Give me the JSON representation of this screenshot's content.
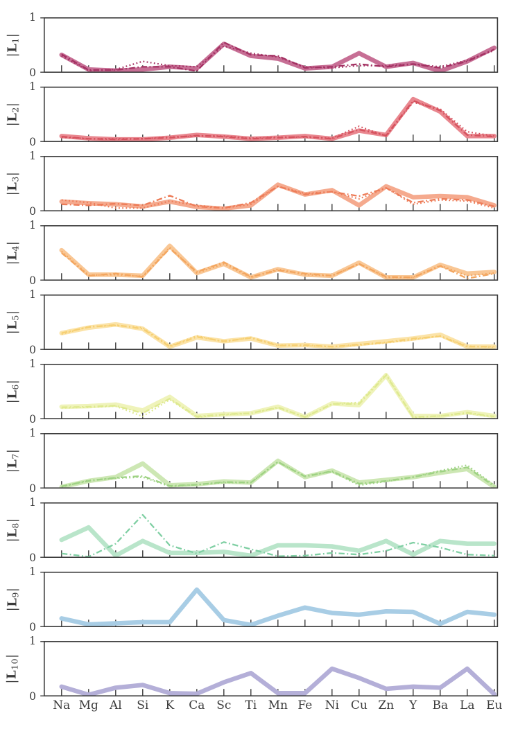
{
  "figure": {
    "background": "#ffffff",
    "frame_color": "#3b3b3b",
    "tick_color": "#3b3b3b",
    "y_axis": {
      "max_label": "1",
      "min_label": "0"
    },
    "y_label_open": "|",
    "y_label_letter": "L",
    "y_label_close": "|",
    "x_tick_labels": [
      "Na",
      "Mg",
      "Al",
      "Si",
      "K",
      "Ca",
      "Sc",
      "Ti",
      "Mn",
      "Fe",
      "Ni",
      "Cu",
      "Zn",
      "Y",
      "Ba",
      "La",
      "Eu"
    ],
    "rows": [
      {
        "id": "L1",
        "sub": "1",
        "color": "#c76f95",
        "accent": "#a43263"
      },
      {
        "id": "L2",
        "sub": "2",
        "color": "#e9878f",
        "accent": "#d5525e"
      },
      {
        "id": "L3",
        "sub": "3",
        "color": "#f5aa8e",
        "accent": "#ed7c58"
      },
      {
        "id": "L4",
        "sub": "4",
        "color": "#f9c795",
        "accent": "#f3a55e"
      },
      {
        "id": "L5",
        "sub": "5",
        "color": "#fbe3a8",
        "accent": "#f6cf72"
      },
      {
        "id": "L6",
        "sub": "6",
        "color": "#eff3ba",
        "accent": "#dee98f"
      },
      {
        "id": "L7",
        "sub": "7",
        "color": "#cde7b4",
        "accent": "#9ed283"
      },
      {
        "id": "L8",
        "sub": "8",
        "color": "#b9e5ca",
        "accent": "#7fcfa3"
      },
      {
        "id": "L9",
        "sub": "9",
        "color": "#a8cde5",
        "accent": "#a8cde5"
      },
      {
        "id": "L10",
        "sub": "10",
        "color": "#b4afd8",
        "accent": "#b4afd8"
      }
    ]
  },
  "chart_data": {
    "type": "line",
    "categories": [
      "Na",
      "Mg",
      "Al",
      "Si",
      "K",
      "Ca",
      "Sc",
      "Ti",
      "Mn",
      "Fe",
      "Ni",
      "Cu",
      "Zn",
      "Y",
      "Ba",
      "La",
      "Eu"
    ],
    "ylim": [
      0,
      1
    ],
    "grid": false,
    "legend": "none",
    "layout": "10 vertically stacked panels sharing the element x-axis; y ticks at 0 and 1 only",
    "panels": [
      {
        "title": "|L_1|",
        "series": [
          {
            "name": "solid",
            "style": "thick",
            "values": [
              0.32,
              0.05,
              0.03,
              0.05,
              0.1,
              0.07,
              0.52,
              0.3,
              0.25,
              0.07,
              0.1,
              0.35,
              0.1,
              0.17,
              0.02,
              0.2,
              0.45
            ]
          },
          {
            "name": "dotted",
            "style": "dotted",
            "values": [
              0.3,
              0.03,
              0.05,
              0.2,
              0.12,
              0.1,
              0.48,
              0.35,
              0.28,
              0.1,
              0.08,
              0.12,
              0.12,
              0.15,
              0.1,
              0.22,
              0.4
            ]
          },
          {
            "name": "dashdot",
            "style": "dashdot",
            "values": [
              0.33,
              0.04,
              0.04,
              0.1,
              0.1,
              0.02,
              0.55,
              0.32,
              0.3,
              0.08,
              0.1,
              0.15,
              0.1,
              0.15,
              0.08,
              0.2,
              0.42
            ]
          }
        ]
      },
      {
        "title": "|L_2|",
        "series": [
          {
            "name": "solid",
            "style": "thick",
            "values": [
              0.1,
              0.06,
              0.04,
              0.04,
              0.07,
              0.12,
              0.09,
              0.05,
              0.07,
              0.1,
              0.05,
              0.2,
              0.12,
              0.78,
              0.55,
              0.1,
              0.1
            ]
          },
          {
            "name": "dotted",
            "style": "dotted",
            "values": [
              0.08,
              0.05,
              0.05,
              0.05,
              0.08,
              0.1,
              0.1,
              0.06,
              0.08,
              0.08,
              0.06,
              0.28,
              0.1,
              0.72,
              0.6,
              0.18,
              0.1
            ]
          },
          {
            "name": "dashdot",
            "style": "dashdot",
            "values": [
              0.09,
              0.05,
              0.04,
              0.05,
              0.07,
              0.11,
              0.09,
              0.05,
              0.07,
              0.09,
              0.05,
              0.22,
              0.11,
              0.75,
              0.57,
              0.12,
              0.09
            ]
          }
        ]
      },
      {
        "title": "|L_3|",
        "series": [
          {
            "name": "solid",
            "style": "thick",
            "values": [
              0.17,
              0.14,
              0.12,
              0.08,
              0.17,
              0.07,
              0.04,
              0.1,
              0.48,
              0.3,
              0.38,
              0.1,
              0.45,
              0.25,
              0.27,
              0.25,
              0.1
            ]
          },
          {
            "name": "dotted",
            "style": "dotted",
            "values": [
              0.2,
              0.15,
              0.05,
              0.05,
              0.18,
              0.1,
              0.05,
              0.12,
              0.45,
              0.32,
              0.35,
              0.22,
              0.42,
              0.12,
              0.2,
              0.18,
              0.05
            ]
          },
          {
            "name": "dashdot",
            "style": "dashdot",
            "values": [
              0.12,
              0.1,
              0.13,
              0.1,
              0.28,
              0.08,
              0.05,
              0.15,
              0.45,
              0.3,
              0.35,
              0.27,
              0.42,
              0.15,
              0.22,
              0.2,
              0.08
            ]
          }
        ]
      },
      {
        "title": "|L_4|",
        "series": [
          {
            "name": "solid",
            "style": "thick",
            "values": [
              0.55,
              0.1,
              0.1,
              0.08,
              0.63,
              0.13,
              0.3,
              0.05,
              0.2,
              0.1,
              0.08,
              0.32,
              0.05,
              0.05,
              0.28,
              0.12,
              0.15
            ]
          },
          {
            "name": "dotted",
            "style": "dotted",
            "values": [
              0.53,
              0.09,
              0.1,
              0.07,
              0.6,
              0.13,
              0.3,
              0.05,
              0.2,
              0.1,
              0.08,
              0.3,
              0.05,
              0.05,
              0.27,
              0.08,
              0.13
            ]
          },
          {
            "name": "dashdot",
            "style": "dashdot",
            "values": [
              0.5,
              0.08,
              0.12,
              0.06,
              0.58,
              0.15,
              0.33,
              0.06,
              0.18,
              0.12,
              0.08,
              0.3,
              0.06,
              0.05,
              0.26,
              0.03,
              0.12
            ]
          }
        ]
      },
      {
        "title": "|L_5|",
        "series": [
          {
            "name": "solid",
            "style": "thick",
            "values": [
              0.3,
              0.4,
              0.46,
              0.38,
              0.05,
              0.22,
              0.15,
              0.2,
              0.07,
              0.08,
              0.05,
              0.1,
              0.15,
              0.2,
              0.27,
              0.05,
              0.05
            ]
          },
          {
            "name": "dotted",
            "style": "dotted",
            "values": [
              0.28,
              0.42,
              0.44,
              0.4,
              0.06,
              0.25,
              0.14,
              0.22,
              0.08,
              0.07,
              0.05,
              0.08,
              0.12,
              0.18,
              0.25,
              0.06,
              0.04
            ]
          },
          {
            "name": "dashdot",
            "style": "dashdot",
            "values": [
              0.3,
              0.41,
              0.45,
              0.38,
              0.05,
              0.23,
              0.15,
              0.21,
              0.07,
              0.08,
              0.05,
              0.09,
              0.13,
              0.2,
              0.24,
              0.05,
              0.05
            ]
          }
        ]
      },
      {
        "title": "|L_6|",
        "series": [
          {
            "name": "solid",
            "style": "thick",
            "values": [
              0.22,
              0.23,
              0.26,
              0.15,
              0.4,
              0.05,
              0.08,
              0.1,
              0.22,
              0.03,
              0.28,
              0.25,
              0.8,
              0.05,
              0.05,
              0.12,
              0.05
            ]
          },
          {
            "name": "dotted",
            "style": "dotted",
            "values": [
              0.2,
              0.21,
              0.23,
              0.04,
              0.35,
              0.03,
              0.07,
              0.1,
              0.2,
              0.03,
              0.27,
              0.3,
              0.82,
              0.02,
              0.05,
              0.1,
              0.03
            ]
          },
          {
            "name": "dashdot",
            "style": "dashdot",
            "values": [
              0.21,
              0.22,
              0.24,
              0.1,
              0.37,
              0.04,
              0.08,
              0.1,
              0.21,
              0.03,
              0.27,
              0.27,
              0.8,
              0.03,
              0.05,
              0.11,
              0.04
            ]
          }
        ]
      },
      {
        "title": "|L_7|",
        "series": [
          {
            "name": "solid",
            "style": "thick",
            "values": [
              0.02,
              0.13,
              0.2,
              0.45,
              0.05,
              0.07,
              0.12,
              0.1,
              0.5,
              0.2,
              0.32,
              0.1,
              0.15,
              0.2,
              0.28,
              0.35,
              0.02
            ]
          },
          {
            "name": "dotted",
            "style": "dotted",
            "values": [
              0.02,
              0.14,
              0.18,
              0.2,
              0.03,
              0.06,
              0.1,
              0.1,
              0.48,
              0.22,
              0.3,
              0.05,
              0.12,
              0.2,
              0.32,
              0.42,
              0.05
            ]
          },
          {
            "name": "dashdot",
            "style": "dashdot",
            "values": [
              0.03,
              0.13,
              0.19,
              0.22,
              0.04,
              0.06,
              0.11,
              0.1,
              0.48,
              0.21,
              0.31,
              0.08,
              0.13,
              0.2,
              0.3,
              0.38,
              0.03
            ]
          }
        ]
      },
      {
        "title": "|L_8|",
        "series": [
          {
            "name": "solid",
            "style": "thick",
            "values": [
              0.32,
              0.55,
              0.03,
              0.3,
              0.08,
              0.08,
              0.1,
              0.03,
              0.22,
              0.22,
              0.2,
              0.12,
              0.3,
              0.05,
              0.3,
              0.25,
              0.25
            ]
          },
          {
            "name": "dashdot",
            "style": "dashdot",
            "values": [
              0.07,
              0.01,
              0.25,
              0.78,
              0.22,
              0.07,
              0.28,
              0.15,
              0.02,
              0.03,
              0.08,
              0.05,
              0.12,
              0.27,
              0.18,
              0.05,
              0.03
            ]
          }
        ]
      },
      {
        "title": "|L_9|",
        "series": [
          {
            "name": "solid",
            "style": "thick",
            "values": [
              0.15,
              0.04,
              0.06,
              0.08,
              0.08,
              0.68,
              0.12,
              0.03,
              0.2,
              0.35,
              0.25,
              0.22,
              0.28,
              0.27,
              0.05,
              0.27,
              0.22
            ]
          }
        ]
      },
      {
        "title": "|L_10|",
        "series": [
          {
            "name": "solid",
            "style": "thick",
            "values": [
              0.17,
              0.02,
              0.15,
              0.2,
              0.05,
              0.04,
              0.25,
              0.42,
              0.05,
              0.05,
              0.5,
              0.33,
              0.13,
              0.17,
              0.15,
              0.5,
              0.03
            ]
          }
        ]
      }
    ]
  }
}
